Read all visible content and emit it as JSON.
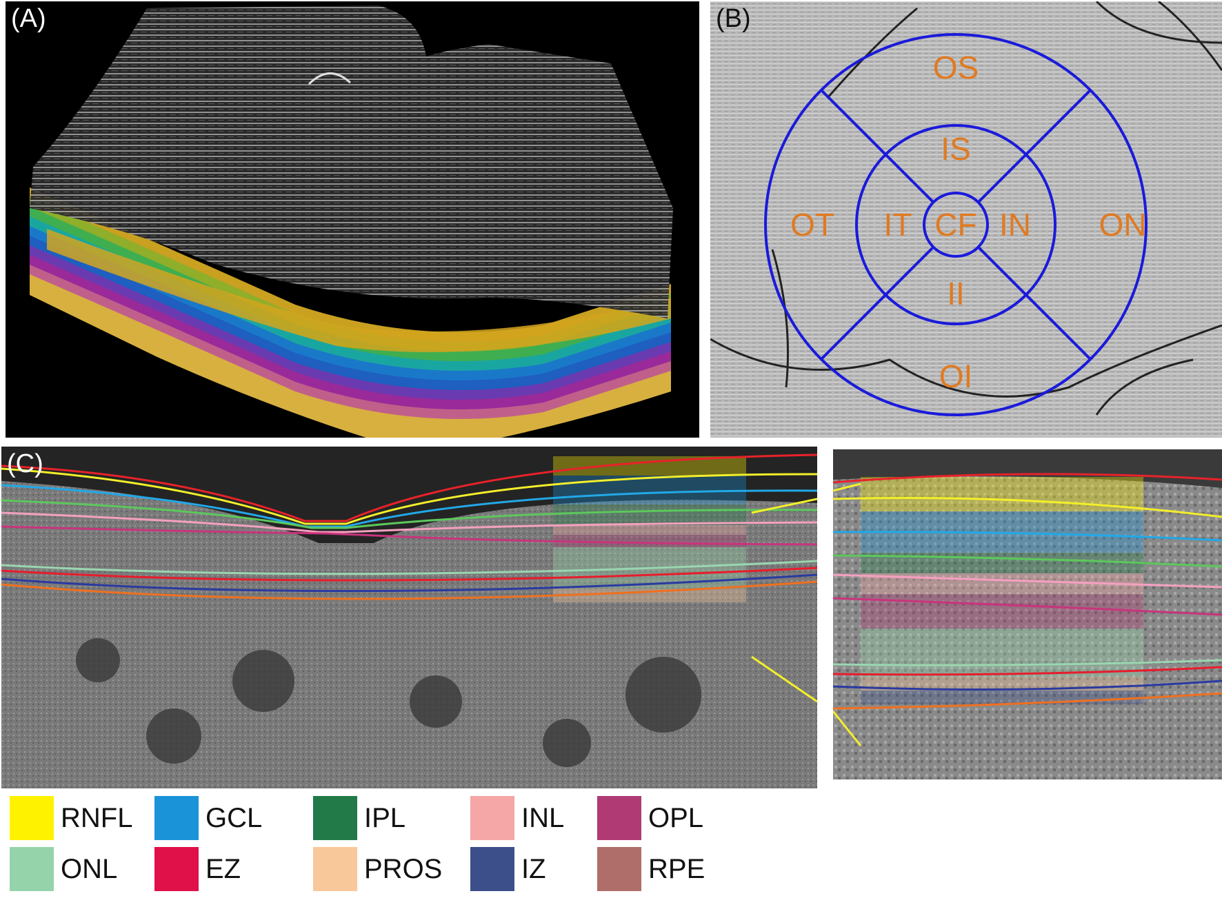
{
  "panels": {
    "a": {
      "label": "(A)"
    },
    "b": {
      "label": "(B)",
      "regions": [
        "OS",
        "IS",
        "OT",
        "IT",
        "CF",
        "IN",
        "ON",
        "II",
        "OI"
      ],
      "grid_color": "#1a1adb",
      "text_color": "#e07a22"
    },
    "c": {
      "label": "(C)"
    }
  },
  "legend": [
    {
      "label": "RNFL",
      "color": "#fff200"
    },
    {
      "label": "GCL",
      "color": "#1a93d8"
    },
    {
      "label": "IPL",
      "color": "#217a48"
    },
    {
      "label": "INL",
      "color": "#f5a6a6"
    },
    {
      "label": "OPL",
      "color": "#b03a74"
    },
    {
      "label": "ONL",
      "color": "#95d3aa"
    },
    {
      "label": "EZ",
      "color": "#e01048"
    },
    {
      "label": "PROS",
      "color": "#f8c89a"
    },
    {
      "label": "IZ",
      "color": "#3c4f8a"
    },
    {
      "label": "RPE",
      "color": "#b06e6a"
    }
  ],
  "boundary_colors": {
    "ilm": "#e8222a",
    "rnfl": "#f3ef2a",
    "gcl": "#22a8e8",
    "ipl": "#5cc85c",
    "inl": "#f5a0c0",
    "opl": "#c8347c",
    "onl": "#9ad6b0",
    "ez": "#e81c2c",
    "iz": "#2a3aa0",
    "rpe": "#f07020"
  }
}
